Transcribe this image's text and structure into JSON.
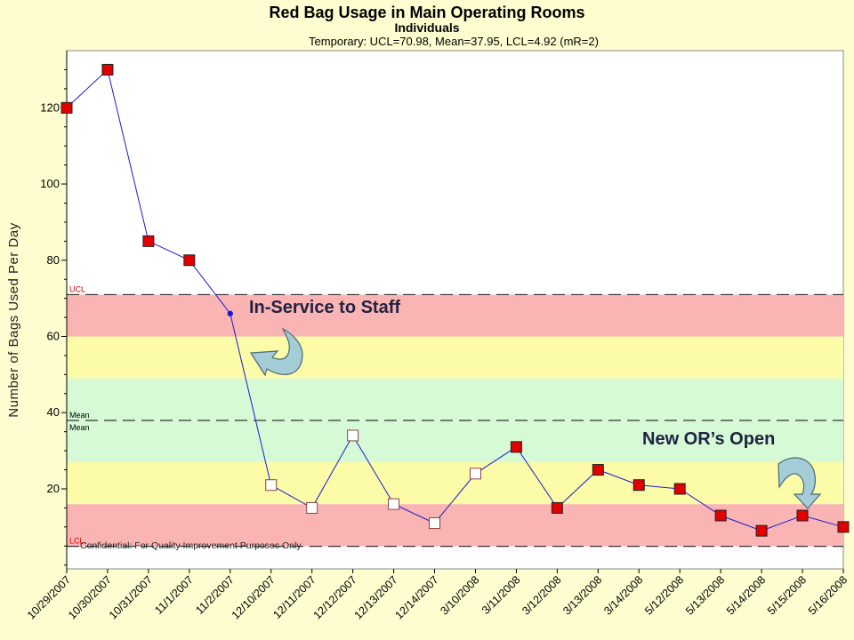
{
  "chart_data": {
    "type": "line",
    "title": "Red Bag Usage in Main Operating Rooms",
    "subtitle": "Individuals",
    "summary": "Temporary: UCL=70.98, Mean=37.95, LCL=4.92 (mR=2)",
    "ylabel": "Number of Bags Used Per Day",
    "xlabel": "",
    "ylim": [
      -1,
      135
    ],
    "yticks": [
      20,
      40,
      60,
      80,
      100,
      120
    ],
    "grid": false,
    "categories": [
      "10/29/2007",
      "10/30/2007",
      "10/31/2007",
      "11/1/2007",
      "11/2/2007",
      "12/10/2007",
      "12/11/2007",
      "12/12/2007",
      "12/13/2007",
      "12/14/2007",
      "3/10/2008",
      "3/11/2008",
      "3/12/2008",
      "3/13/2008",
      "3/14/2008",
      "5/12/2008",
      "5/13/2008",
      "5/14/2008",
      "5/15/2008",
      "5/16/2008"
    ],
    "series": [
      {
        "values": [
          120,
          130,
          85,
          80,
          66,
          21,
          15,
          34,
          16,
          11,
          24,
          31,
          15,
          25,
          21,
          20,
          13,
          9,
          13,
          10
        ],
        "markers": [
          "filled",
          "filled",
          "filled",
          "filled",
          "dot",
          "open",
          "open",
          "open",
          "open",
          "open",
          "open",
          "filled",
          "filled",
          "filled",
          "filled",
          "filled",
          "filled",
          "filled",
          "filled",
          "filled"
        ]
      }
    ],
    "control_limits": {
      "ucl": 70.98,
      "mean": 37.95,
      "lcl": 4.92,
      "ucl_label": "UCL",
      "mean_label": "Mean",
      "lcl_label": "LCL"
    },
    "zones": [
      {
        "from": 4.92,
        "to": 16,
        "color": "#fbb4b4"
      },
      {
        "from": 16,
        "to": 27,
        "color": "#fbfba8"
      },
      {
        "from": 27,
        "to": 49,
        "color": "#d6fad6"
      },
      {
        "from": 49,
        "to": 60,
        "color": "#fbfba8"
      },
      {
        "from": 60,
        "to": 70.98,
        "color": "#fbb4b4"
      }
    ],
    "annotations": [
      {
        "text": "In-Service to Staff"
      },
      {
        "text": "New OR’s Open"
      },
      {
        "text": "Confidential: For Quality Improvement Purposes Only"
      }
    ],
    "colors": {
      "line": "#1a1ad0",
      "marker_fill": "#e00000",
      "marker_open": "#ffffff",
      "marker_stroke": "#222222",
      "plot_bg": "#ffffff",
      "frame_bg": "#fdfdd0",
      "limit_line": "#333333",
      "limit_text": "#cc0000",
      "callout_text": "#1f2240",
      "arrow1": "#a4cdd8",
      "arrow2": "#7a9aa0"
    }
  }
}
